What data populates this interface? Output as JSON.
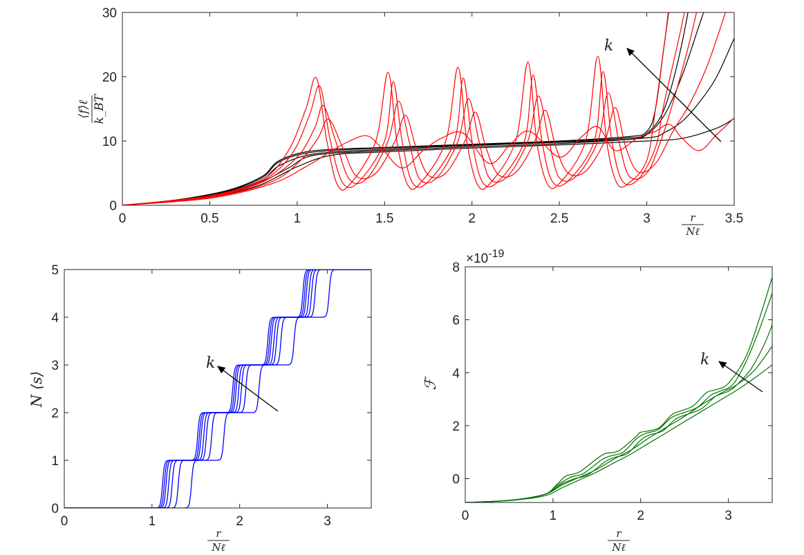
{
  "chart_data": [
    {
      "type": "line",
      "id": "force",
      "ylabel_parts": {
        "num": "⟨f⟩ℓ",
        "den": "k_BT"
      },
      "xlabel_parts": {
        "num": "r",
        "den": "Nℓ"
      },
      "xlim": [
        0,
        3.5
      ],
      "ylim": [
        0,
        30
      ],
      "xticks": [
        "0",
        "0.5",
        "1",
        "1.5",
        "2",
        "2.5",
        "3",
        "3.5"
      ],
      "yticks": [
        "0",
        "10",
        "20",
        "30"
      ],
      "annotation": "k",
      "colors": {
        "soft": "#000000",
        "sawtooth": "#ff0000"
      },
      "series": [
        {
          "group": "soft",
          "x": [
            0,
            0.3,
            0.6,
            0.8,
            0.9,
            1.1,
            1.5,
            2.0,
            2.5,
            2.9,
            3.0,
            3.05,
            3.1,
            3.2
          ],
          "y": [
            0,
            0.8,
            2.3,
            4.5,
            7.0,
            8.5,
            9.0,
            9.5,
            10.0,
            10.7,
            11.5,
            15,
            25,
            45
          ]
        },
        {
          "group": "soft",
          "x": [
            0,
            0.3,
            0.6,
            0.8,
            0.9,
            1.1,
            1.5,
            2.0,
            2.5,
            2.9,
            3.0,
            3.1,
            3.2,
            3.3
          ],
          "y": [
            0,
            0.8,
            2.2,
            4.3,
            6.8,
            8.3,
            8.9,
            9.4,
            9.9,
            10.5,
            11.2,
            15,
            25,
            40
          ]
        },
        {
          "group": "soft",
          "x": [
            0,
            0.3,
            0.6,
            0.8,
            0.9,
            1.1,
            1.5,
            2.0,
            2.5,
            2.9,
            3.0,
            3.1,
            3.2,
            3.3,
            3.4
          ],
          "y": [
            0,
            0.8,
            2.1,
            4.0,
            6.2,
            8.0,
            8.7,
            9.3,
            9.8,
            10.3,
            11.0,
            14,
            20,
            28,
            36
          ]
        },
        {
          "group": "soft",
          "x": [
            0,
            0.3,
            0.6,
            0.8,
            0.95,
            1.1,
            1.5,
            2.0,
            2.5,
            3.0,
            3.1,
            3.2,
            3.3,
            3.4,
            3.5
          ],
          "y": [
            0,
            0.8,
            2.0,
            3.7,
            5.8,
            7.8,
            8.5,
            9.1,
            9.6,
            10.5,
            11.3,
            13,
            16,
            20,
            26
          ]
        },
        {
          "group": "soft",
          "x": [
            0,
            0.3,
            0.6,
            0.8,
            1.0,
            1.2,
            1.5,
            2.0,
            2.5,
            3.0,
            3.2,
            3.4,
            3.5
          ],
          "y": [
            0,
            0.7,
            1.8,
            3.3,
            6.0,
            7.8,
            8.3,
            8.9,
            9.4,
            10.0,
            10.4,
            12.0,
            13.5
          ]
        },
        {
          "group": "sawtooth",
          "x": [
            0,
            0.5,
            0.8,
            0.95,
            1.05,
            1.11,
            1.17,
            1.23,
            1.3,
            1.45,
            1.52,
            1.57,
            1.63,
            1.7,
            1.85,
            1.92,
            1.97,
            2.03,
            2.1,
            2.25,
            2.32,
            2.37,
            2.43,
            2.5,
            2.65,
            2.72,
            2.77,
            2.83,
            2.9,
            3.0,
            3.05,
            3.1,
            3.15,
            3.25
          ],
          "y": [
            0,
            1.5,
            4.0,
            8.5,
            15,
            19.8,
            10,
            3.2,
            3.2,
            10,
            20.7,
            10,
            3.3,
            3.3,
            10,
            21.5,
            10,
            3.3,
            3.3,
            10,
            22.3,
            10,
            3.4,
            3.4,
            10,
            23.2,
            10,
            3.4,
            3.5,
            7.0,
            15.0,
            25.0,
            35.0,
            48.0
          ]
        },
        {
          "group": "sawtooth",
          "x": [
            0,
            0.5,
            0.8,
            0.97,
            1.07,
            1.13,
            1.19,
            1.26,
            1.35,
            1.5,
            1.55,
            1.6,
            1.66,
            1.75,
            1.9,
            1.95,
            2.0,
            2.06,
            2.15,
            2.3,
            2.35,
            2.4,
            2.46,
            2.55,
            2.7,
            2.75,
            2.8,
            2.86,
            2.95,
            3.05,
            3.1,
            3.2,
            3.3
          ],
          "y": [
            0,
            1.4,
            3.8,
            8.0,
            14,
            18.5,
            10,
            3.5,
            3.6,
            10,
            19.2,
            10,
            3.5,
            3.7,
            10,
            19.8,
            10,
            3.6,
            3.7,
            10,
            20.3,
            10,
            3.7,
            3.8,
            10,
            20.8,
            10,
            3.8,
            4.0,
            9.0,
            16,
            28,
            42
          ]
        },
        {
          "group": "sawtooth",
          "x": [
            0,
            0.5,
            0.8,
            1.0,
            1.1,
            1.15,
            1.22,
            1.3,
            1.4,
            1.52,
            1.58,
            1.64,
            1.7,
            1.8,
            1.92,
            1.98,
            2.04,
            2.1,
            2.2,
            2.32,
            2.38,
            2.44,
            2.5,
            2.6,
            2.72,
            2.78,
            2.84,
            2.9,
            3.0,
            3.08,
            3.15,
            3.25,
            3.35
          ],
          "y": [
            0,
            1.3,
            3.6,
            7.5,
            12,
            15.5,
            10,
            4.0,
            4.2,
            10,
            16.2,
            10,
            4.1,
            4.3,
            10,
            16.6,
            10,
            4.2,
            4.4,
            10,
            17.0,
            10,
            4.3,
            4.6,
            10,
            17.5,
            10,
            4.5,
            5.0,
            10,
            16,
            26,
            38
          ]
        },
        {
          "group": "sawtooth",
          "x": [
            0,
            0.5,
            0.85,
            1.02,
            1.12,
            1.18,
            1.26,
            1.34,
            1.45,
            1.56,
            1.62,
            1.68,
            1.75,
            1.85,
            1.96,
            2.02,
            2.08,
            2.15,
            2.25,
            2.36,
            2.42,
            2.48,
            2.55,
            2.65,
            2.76,
            2.82,
            2.88,
            2.95,
            3.05,
            3.15,
            3.25,
            3.35,
            3.45
          ],
          "y": [
            0,
            1.2,
            3.6,
            7.0,
            10.5,
            13.4,
            9.0,
            4.5,
            5.0,
            10,
            14.0,
            9.0,
            4.7,
            5.0,
            10,
            14.5,
            9.0,
            4.8,
            5.1,
            10,
            14.8,
            9.0,
            5.0,
            5.3,
            10,
            15.2,
            9.0,
            5.2,
            6.5,
            11.5,
            16,
            22,
            30
          ]
        },
        {
          "group": "sawtooth",
          "x": [
            0,
            0.5,
            0.85,
            1.05,
            1.2,
            1.3,
            1.4,
            1.48,
            1.6,
            1.72,
            1.83,
            1.95,
            2.1,
            2.22,
            2.33,
            2.5,
            2.62,
            2.72,
            2.82,
            2.95,
            3.05,
            3.13,
            3.2,
            3.3,
            3.4,
            3.5
          ],
          "y": [
            0,
            1.1,
            3.3,
            6.0,
            8.5,
            10.0,
            10.8,
            9.0,
            5.8,
            8.5,
            10.5,
            11.2,
            6.5,
            9.5,
            11.5,
            7.5,
            10.5,
            12.2,
            8.5,
            10.5,
            11.5,
            12.6,
            10.5,
            8.5,
            11.0,
            13.6
          ]
        }
      ]
    },
    {
      "type": "line",
      "id": "occupancy",
      "ylabel": "N ⟨s⟩",
      "xlabel_parts": {
        "num": "r",
        "den": "Nℓ"
      },
      "xlim": [
        0,
        3.5
      ],
      "ylim": [
        0,
        5
      ],
      "xticks": [
        "0",
        "1",
        "2",
        "3"
      ],
      "yticks": [
        "0",
        "1",
        "2",
        "3",
        "4",
        "5"
      ],
      "annotation": "k",
      "color": "#0000ff",
      "step_centers": [
        [
          1.12,
          1.52,
          1.92,
          2.32,
          2.72
        ],
        [
          1.14,
          1.54,
          1.94,
          2.34,
          2.74
        ],
        [
          1.16,
          1.56,
          1.96,
          2.36,
          2.76
        ],
        [
          1.19,
          1.59,
          1.99,
          2.39,
          2.79
        ],
        [
          1.23,
          1.62,
          2.02,
          2.42,
          2.82
        ],
        [
          1.3,
          1.68,
          2.07,
          2.47,
          2.86
        ],
        [
          1.45,
          1.82,
          2.22,
          2.62,
          3.02
        ]
      ]
    },
    {
      "type": "line",
      "id": "free-energy",
      "ylabel": "ℱ",
      "xlabel_parts": {
        "num": "r",
        "den": "Nℓ"
      },
      "exponent": "×10",
      "exponent_power": "-19",
      "xlim": [
        0,
        3.5
      ],
      "ylim": [
        -0.9,
        8
      ],
      "xticks": [
        "0",
        "1",
        "2",
        "3"
      ],
      "yticks": [
        "0",
        "2",
        "4",
        "6",
        "8"
      ],
      "annotation": "k",
      "color": "#007000",
      "series": [
        {
          "x": [
            0,
            0.5,
            0.9,
            1.05,
            1.15,
            1.3,
            1.5,
            1.6,
            1.75,
            1.95,
            2.0,
            2.2,
            2.35,
            2.45,
            2.6,
            2.75,
            2.85,
            3.0,
            3.2,
            3.35,
            3.5
          ],
          "y": [
            -0.9,
            -0.82,
            -0.6,
            -0.2,
            0.1,
            0.25,
            0.75,
            0.95,
            1.05,
            1.6,
            1.75,
            1.9,
            2.4,
            2.55,
            2.75,
            3.25,
            3.35,
            3.6,
            4.6,
            6.0,
            7.6
          ]
        },
        {
          "x": [
            0,
            0.5,
            0.9,
            1.05,
            1.2,
            1.35,
            1.55,
            1.65,
            1.8,
            1.95,
            2.05,
            2.2,
            2.35,
            2.5,
            2.65,
            2.8,
            2.9,
            3.05,
            3.2,
            3.35,
            3.5
          ],
          "y": [
            -0.9,
            -0.82,
            -0.6,
            -0.25,
            0.05,
            0.2,
            0.7,
            0.85,
            1.0,
            1.5,
            1.7,
            1.85,
            2.3,
            2.5,
            2.7,
            3.15,
            3.3,
            3.55,
            4.4,
            5.6,
            7.0
          ]
        },
        {
          "x": [
            0,
            0.5,
            0.9,
            1.1,
            1.25,
            1.4,
            1.6,
            1.7,
            1.85,
            2.0,
            2.1,
            2.25,
            2.4,
            2.55,
            2.7,
            2.85,
            3.0,
            3.1,
            3.25,
            3.4,
            3.5
          ],
          "y": [
            -0.9,
            -0.82,
            -0.6,
            -0.2,
            0.0,
            0.15,
            0.65,
            0.8,
            0.95,
            1.45,
            1.65,
            1.8,
            2.25,
            2.45,
            2.65,
            3.1,
            3.3,
            3.55,
            4.1,
            5.0,
            5.8
          ]
        },
        {
          "x": [
            0,
            0.5,
            0.9,
            1.1,
            1.3,
            1.5,
            1.7,
            1.9,
            2.1,
            2.3,
            2.5,
            2.7,
            2.9,
            3.1,
            3.3,
            3.5
          ],
          "y": [
            -0.9,
            -0.82,
            -0.6,
            -0.25,
            0.05,
            0.35,
            0.75,
            1.1,
            1.55,
            1.95,
            2.35,
            2.8,
            3.2,
            3.55,
            4.1,
            5.0
          ]
        },
        {
          "x": [
            0,
            0.5,
            0.9,
            1.1,
            1.3,
            1.5,
            1.7,
            1.9,
            2.1,
            2.3,
            2.5,
            2.7,
            2.9,
            3.1,
            3.3,
            3.5
          ],
          "y": [
            -0.9,
            -0.83,
            -0.65,
            -0.35,
            -0.05,
            0.25,
            0.6,
            0.95,
            1.35,
            1.75,
            2.15,
            2.55,
            2.95,
            3.35,
            3.8,
            4.3
          ]
        }
      ]
    }
  ]
}
